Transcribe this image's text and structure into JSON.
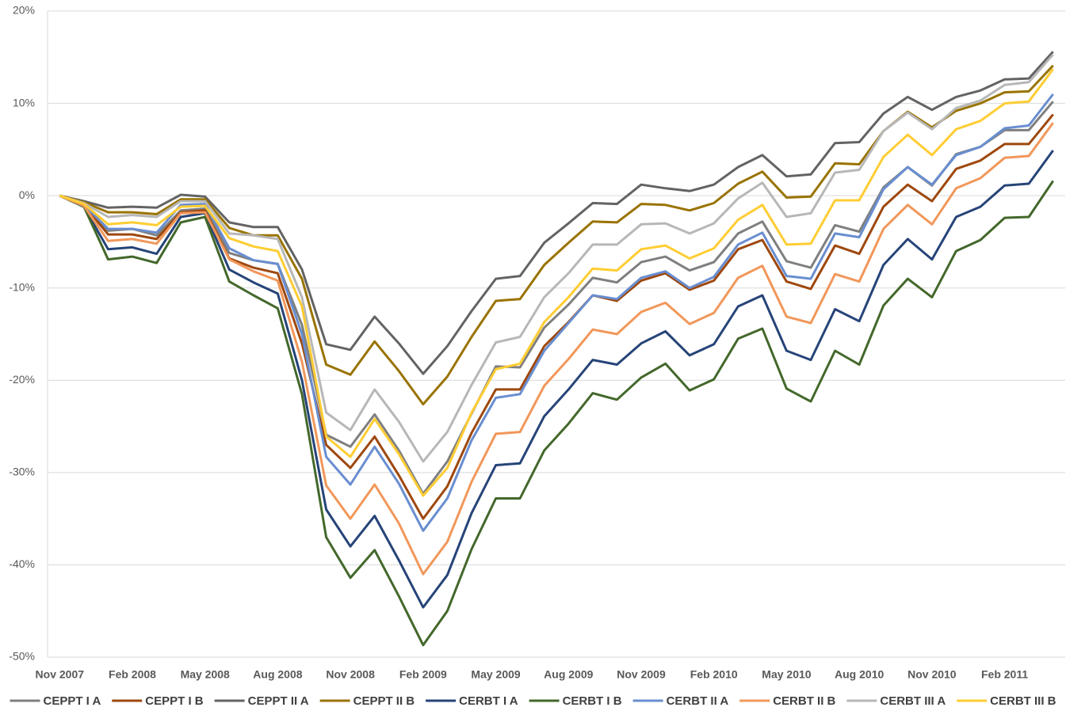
{
  "chart_data": {
    "type": "line",
    "categories": [
      "Nov 2007",
      null,
      null,
      "Feb 2008",
      null,
      null,
      "May 2008",
      null,
      null,
      "Aug 2008",
      null,
      null,
      "Nov 2008",
      null,
      null,
      "Feb 2009",
      null,
      null,
      "May 2009",
      null,
      null,
      "Aug 2009",
      null,
      null,
      "Nov 2009",
      null,
      null,
      "Feb 2010",
      null,
      null,
      "May 2010",
      null,
      null,
      "Aug 2010",
      null,
      null,
      "Nov 2010",
      null,
      null,
      "Feb 2011",
      null,
      null
    ],
    "ylim": [
      -50,
      20
    ],
    "yticks": [
      {
        "value": -50,
        "label": "-50%"
      },
      {
        "value": -40,
        "label": "-40%"
      },
      {
        "value": -30,
        "label": "-30%"
      },
      {
        "value": -20,
        "label": "-20%"
      },
      {
        "value": -10,
        "label": "-10%"
      },
      {
        "value": 0,
        "label": "0%"
      },
      {
        "value": 10,
        "label": "10%"
      },
      {
        "value": 20,
        "label": "20%"
      }
    ],
    "grid": true,
    "legend": "bottom",
    "series": [
      {
        "name": "CEPPT I A",
        "color": "#7f7f7f",
        "values": [
          0,
          -1,
          -3.8,
          -3.6,
          -4.3,
          -1.6,
          -1.4,
          -6.2,
          -7,
          -7.4,
          -14,
          -25.9,
          -27.2,
          -23.7,
          -27.6,
          -32.3,
          -28.8,
          -23.6,
          -18.5,
          -18.6,
          -14.3,
          -11.8,
          -8.9,
          -9.4,
          -7.2,
          -6.6,
          -8.1,
          -7.2,
          -4.1,
          -2.8,
          -7.1,
          -7.8,
          -3.2,
          -3.9,
          0.9,
          3.1,
          1.1,
          4.5,
          5.3,
          7.1,
          7.1,
          10.2
        ]
      },
      {
        "name": "CEPPT I B",
        "color": "#9e480e",
        "values": [
          0,
          -1,
          -4.2,
          -4.2,
          -4.7,
          -1.8,
          -1.6,
          -6.8,
          -7.8,
          -8.4,
          -16,
          -27,
          -29.5,
          -26.1,
          -30.3,
          -35,
          -31.5,
          -25.7,
          -21,
          -21,
          -16.3,
          -13.7,
          -10.8,
          -11.4,
          -9.2,
          -8.4,
          -10.2,
          -9.2,
          -5.8,
          -4.8,
          -9.3,
          -10.1,
          -5.4,
          -6.3,
          -1.2,
          1.2,
          -0.6,
          2.9,
          3.8,
          5.6,
          5.6,
          8.8
        ]
      },
      {
        "name": "CEPPT II A",
        "color": "#636363",
        "values": [
          0,
          -0.6,
          -1.3,
          -1.2,
          -1.3,
          0.1,
          -0.1,
          -2.9,
          -3.4,
          -3.4,
          -8,
          -16.1,
          -16.7,
          -13.1,
          -16,
          -19.3,
          -16.3,
          -12.5,
          -9,
          -8.7,
          -5.1,
          -3,
          -0.8,
          -0.9,
          1.2,
          0.8,
          0.5,
          1.2,
          3.1,
          4.4,
          2.1,
          2.3,
          5.7,
          5.8,
          8.9,
          10.7,
          9.3,
          10.7,
          11.4,
          12.6,
          12.7,
          15.6
        ]
      },
      {
        "name": "CEPPT II B",
        "color": "#997300",
        "values": [
          0,
          -0.7,
          -1.8,
          -1.8,
          -2,
          -0.4,
          -0.4,
          -3.5,
          -4.3,
          -4.3,
          -9,
          -18.3,
          -19.4,
          -15.8,
          -19,
          -22.6,
          -19.6,
          -15.3,
          -11.4,
          -11.2,
          -7.5,
          -5.1,
          -2.8,
          -2.9,
          -0.9,
          -1,
          -1.6,
          -0.8,
          1.3,
          2.6,
          -0.2,
          -0.1,
          3.5,
          3.4,
          7,
          9.1,
          7.4,
          9.2,
          10,
          11.2,
          11.3,
          14.1
        ]
      },
      {
        "name": "CERBT I A",
        "color": "#264478",
        "values": [
          0,
          -1.2,
          -5.8,
          -5.6,
          -6.3,
          -2.3,
          -1.9,
          -8,
          -9.4,
          -10.6,
          -20,
          -34,
          -38,
          -34.7,
          -39.5,
          -44.6,
          -41.1,
          -34.4,
          -29.2,
          -29,
          -23.9,
          -21,
          -17.8,
          -18.3,
          -16,
          -14.7,
          -17.3,
          -16.1,
          -12,
          -10.8,
          -16.8,
          -17.8,
          -12.3,
          -13.6,
          -7.5,
          -4.7,
          -6.9,
          -2.3,
          -1.2,
          1.1,
          1.3,
          4.9
        ]
      },
      {
        "name": "CERBT I B",
        "color": "#43682b",
        "values": [
          0,
          -1.2,
          -6.9,
          -6.6,
          -7.3,
          -2.9,
          -2.3,
          -9.3,
          -10.8,
          -12.2,
          -21.5,
          -37,
          -41.4,
          -38.4,
          -43.4,
          -48.7,
          -45,
          -38.3,
          -32.8,
          -32.8,
          -27.6,
          -24.7,
          -21.4,
          -22.1,
          -19.7,
          -18.2,
          -21.1,
          -19.9,
          -15.5,
          -14.4,
          -20.9,
          -22.3,
          -16.8,
          -18.3,
          -11.9,
          -9,
          -11,
          -6,
          -4.8,
          -2.4,
          -2.3,
          1.6
        ]
      },
      {
        "name": "CERBT II A",
        "color": "#698ed0",
        "values": [
          0,
          -1,
          -3.6,
          -3.6,
          -4,
          -1,
          -0.9,
          -5.7,
          -7,
          -7.4,
          -15,
          -28.3,
          -31.3,
          -27.2,
          -31.2,
          -36.3,
          -32.8,
          -26.5,
          -21.9,
          -21.5,
          -16.8,
          -13.8,
          -10.8,
          -11.2,
          -8.9,
          -8.2,
          -10,
          -8.8,
          -5.3,
          -4,
          -8.7,
          -9,
          -4.1,
          -4.5,
          0.7,
          3.1,
          1.2,
          4.4,
          5.3,
          7.3,
          7.6,
          11
        ]
      },
      {
        "name": "CERBT II B",
        "color": "#f1975a",
        "values": [
          0,
          -1.1,
          -4.9,
          -4.7,
          -5.2,
          -1.9,
          -1.8,
          -6.9,
          -8.2,
          -9.2,
          -18,
          -31.4,
          -35,
          -31.3,
          -35.5,
          -41,
          -37.5,
          -31,
          -25.8,
          -25.6,
          -20.6,
          -17.7,
          -14.5,
          -15,
          -12.6,
          -11.6,
          -13.9,
          -12.7,
          -8.9,
          -7.6,
          -13.1,
          -13.8,
          -8.5,
          -9.3,
          -3.6,
          -1,
          -3.1,
          0.8,
          1.9,
          4.1,
          4.3,
          7.9
        ]
      },
      {
        "name": "CERBT III A",
        "color": "#b7b7b7",
        "values": [
          0,
          -0.8,
          -2.3,
          -2.1,
          -2.3,
          -0.6,
          -0.6,
          -4.1,
          -4.3,
          -4.7,
          -11,
          -23.5,
          -25.4,
          -21,
          -24.5,
          -28.8,
          -25.6,
          -20.5,
          -15.9,
          -15.3,
          -11,
          -8.4,
          -5.3,
          -5.3,
          -3.1,
          -3,
          -4.1,
          -3,
          -0.3,
          1.4,
          -2.3,
          -1.9,
          2.5,
          2.8,
          7,
          9,
          7.2,
          9.5,
          10.3,
          12,
          12.3,
          15.3
        ]
      },
      {
        "name": "CERBT III B",
        "color": "#ffcd33",
        "values": [
          0,
          -0.9,
          -3.1,
          -2.9,
          -3.2,
          -1.2,
          -1.1,
          -4.6,
          -5.5,
          -6,
          -12,
          -26.1,
          -28.3,
          -24.2,
          -28,
          -32.5,
          -29.5,
          -23.5,
          -18.8,
          -18.2,
          -13.7,
          -11,
          -7.9,
          -8.1,
          -5.8,
          -5.4,
          -6.8,
          -5.7,
          -2.6,
          -1,
          -5.3,
          -5.2,
          -0.5,
          -0.5,
          4.2,
          6.6,
          4.4,
          7.2,
          8.1,
          10,
          10.2,
          13.7
        ]
      }
    ]
  }
}
